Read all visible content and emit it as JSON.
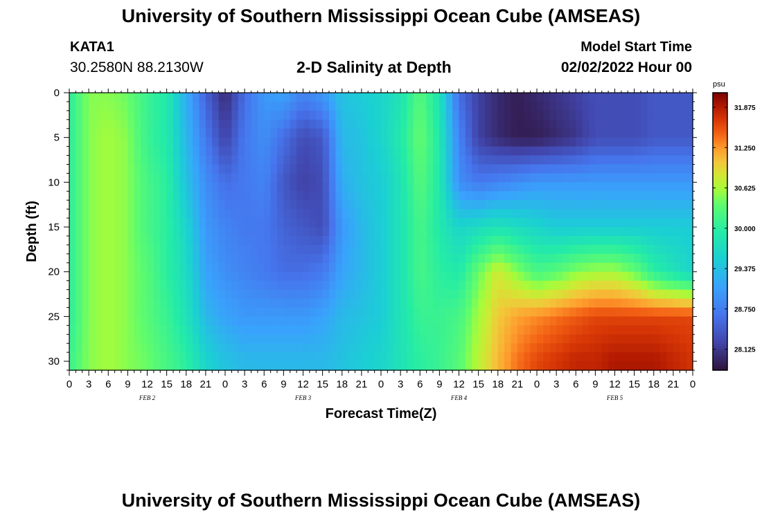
{
  "header": {
    "title": "University of Southern Mississippi Ocean Cube (AMSEAS)",
    "station_name": "KATA1",
    "station_coords": "30.2580N  88.2130W",
    "chart_heading": "2-D Salinity at Depth",
    "model_start_label": "Model Start Time",
    "model_start_value": "02/02/2022 Hour 00"
  },
  "footer": {
    "title": "University of Southern Mississippi Ocean Cube (AMSEAS)"
  },
  "chart_data": {
    "type": "heatmap",
    "title": "2-D Salinity at Depth",
    "xlabel": "Forecast Time(Z)",
    "ylabel": "Depth (ft)",
    "xlim": [
      0,
      96
    ],
    "ylim": [
      31,
      0
    ],
    "x_tick_labels": [
      "0",
      "3",
      "6",
      "9",
      "12",
      "15",
      "18",
      "21",
      "0",
      "3",
      "6",
      "9",
      "12",
      "15",
      "18",
      "21",
      "0",
      "3",
      "6",
      "9",
      "12",
      "15",
      "18",
      "21",
      "0",
      "3",
      "6",
      "9",
      "12",
      "15",
      "18",
      "21",
      "0"
    ],
    "y_tick_labels": [
      "0",
      "5",
      "10",
      "15",
      "20",
      "25",
      "30"
    ],
    "day_labels": [
      "FEB 2",
      "FEB 3",
      "FEB 4",
      "FEB 5"
    ],
    "colorbar": {
      "unit": "psu",
      "min": 27.8,
      "max": 32.1,
      "tick_labels": [
        "31.875",
        "31.250",
        "30.625",
        "30.000",
        "29.375",
        "28.750",
        "28.125"
      ]
    },
    "x_hours": [
      0,
      3,
      6,
      9,
      12,
      15,
      18,
      21,
      24,
      27,
      30,
      33,
      36,
      39,
      42,
      45,
      48,
      51,
      54,
      57,
      60,
      63,
      66,
      69,
      72,
      75,
      78,
      81,
      84,
      87,
      90,
      93,
      96
    ],
    "depths_ft": [
      0,
      5,
      10,
      15,
      20,
      25,
      30
    ],
    "salinity_psu": [
      [
        30.0,
        30.5,
        30.5,
        30.4,
        30.1,
        29.9,
        29.2,
        28.5,
        28.0,
        28.6,
        29.0,
        29.1,
        28.8,
        29.0,
        29.4,
        29.5,
        29.6,
        29.8,
        30.3,
        29.8,
        28.6,
        28.2,
        28.0,
        27.9,
        28.0,
        28.1,
        28.2,
        28.3,
        28.3,
        28.3,
        28.4,
        28.4,
        28.4
      ],
      [
        30.0,
        30.5,
        30.6,
        30.5,
        30.1,
        29.9,
        29.3,
        28.7,
        28.2,
        28.7,
        28.9,
        28.6,
        28.3,
        28.4,
        29.3,
        29.4,
        29.6,
        29.9,
        30.4,
        29.9,
        28.8,
        28.2,
        28.0,
        27.9,
        27.9,
        28.0,
        28.1,
        28.3,
        28.3,
        28.3,
        28.4,
        28.4,
        28.4
      ],
      [
        30.0,
        30.5,
        30.6,
        30.5,
        30.2,
        30.0,
        29.4,
        28.9,
        28.6,
        28.7,
        28.8,
        28.4,
        28.2,
        28.3,
        29.2,
        29.4,
        29.5,
        29.8,
        30.3,
        29.9,
        28.9,
        28.7,
        28.8,
        28.9,
        29.0,
        29.0,
        29.0,
        29.0,
        29.0,
        29.0,
        29.0,
        29.0,
        29.0
      ],
      [
        30.0,
        30.5,
        30.6,
        30.5,
        30.2,
        30.0,
        29.6,
        29.0,
        28.8,
        28.7,
        28.7,
        28.5,
        28.4,
        28.3,
        29.0,
        29.3,
        29.5,
        29.8,
        30.2,
        29.9,
        29.6,
        29.7,
        29.8,
        29.7,
        29.6,
        29.5,
        29.5,
        29.5,
        29.5,
        29.5,
        29.5,
        29.5,
        29.5
      ],
      [
        30.0,
        30.5,
        30.6,
        30.5,
        30.3,
        30.0,
        29.7,
        29.1,
        28.9,
        28.8,
        28.7,
        28.6,
        28.6,
        28.7,
        29.1,
        29.3,
        29.5,
        29.8,
        30.2,
        30.0,
        29.9,
        30.4,
        30.8,
        30.5,
        30.2,
        30.3,
        30.5,
        30.6,
        30.6,
        30.4,
        30.0,
        29.8,
        29.6
      ],
      [
        30.0,
        30.5,
        30.6,
        30.5,
        30.3,
        30.1,
        29.8,
        29.3,
        29.1,
        29.0,
        29.0,
        29.0,
        29.0,
        29.1,
        29.3,
        29.4,
        29.5,
        29.8,
        30.1,
        30.1,
        30.2,
        30.6,
        31.0,
        31.2,
        31.3,
        31.4,
        31.5,
        31.6,
        31.6,
        31.6,
        31.6,
        31.6,
        31.6
      ],
      [
        30.1,
        30.5,
        30.6,
        30.5,
        30.4,
        30.2,
        30.0,
        29.6,
        29.4,
        29.3,
        29.3,
        29.3,
        29.3,
        29.3,
        29.4,
        29.5,
        29.6,
        29.8,
        30.0,
        30.1,
        30.3,
        30.7,
        31.1,
        31.4,
        31.6,
        31.7,
        31.8,
        31.8,
        31.9,
        31.9,
        31.9,
        31.8,
        31.7
      ]
    ]
  }
}
